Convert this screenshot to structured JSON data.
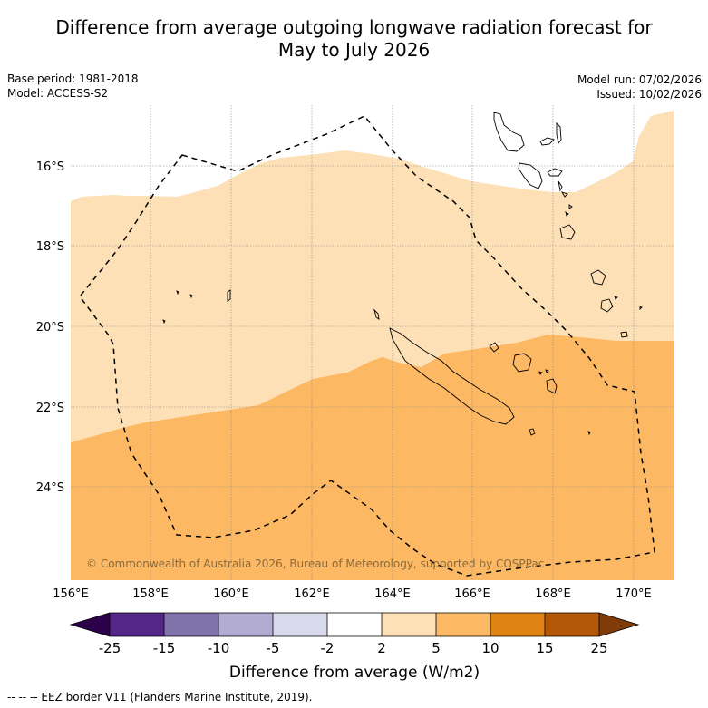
{
  "title_line1": "Difference from average outgoing longwave radiation forecast for",
  "title_line2": "May to July 2026",
  "base_period": "Base period: 1981-2018",
  "model": "Model: ACCESS-S2",
  "model_run": "Model run: 07/02/2026",
  "issued": "Issued: 10/02/2026",
  "copyright": "© Commonwealth of Australia 2026, Bureau of Meteorology, supported by COSPPac",
  "lon_labels": [
    "156°E",
    "158°E",
    "160°E",
    "162°E",
    "164°E",
    "166°E",
    "168°E",
    "170°E"
  ],
  "lat_labels": [
    "16°S",
    "18°S",
    "20°S",
    "22°S",
    "24°S"
  ],
  "colorbar": {
    "title": "Difference from average (W/m2)",
    "tick_labels": [
      "-25",
      "-15",
      "-10",
      "-5",
      "-2",
      "2",
      "5",
      "10",
      "15",
      "25"
    ],
    "colors": {
      "below_min": "#2d004b",
      "bins": [
        "#542788",
        "#8073ac",
        "#b2abd2",
        "#d8daeb",
        "#ffffff",
        "#fee0b6",
        "#fdb863",
        "#e08214",
        "#b35806"
      ],
      "above_max": "#7f3b08"
    }
  },
  "eez_note": "--  --  -- EEZ border V11 (Flanders Marine Institute, 2019).",
  "map_colors": {
    "band_2_5": "#fee0b6",
    "band_5_10": "#fdb863",
    "neutral": "#ffffff"
  }
}
